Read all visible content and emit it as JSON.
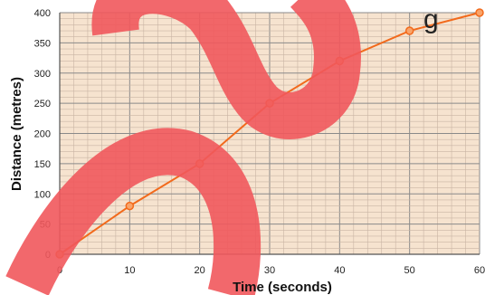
{
  "chart_data": {
    "type": "line",
    "title": "g",
    "xlabel": "Time (seconds)",
    "ylabel": "Distance (metres)",
    "x": [
      0,
      10,
      20,
      30,
      40,
      50,
      60
    ],
    "series": [
      {
        "values": [
          0,
          80,
          150,
          250,
          320,
          370,
          400
        ]
      }
    ],
    "xlim": [
      0,
      60
    ],
    "ylim": [
      0,
      400
    ],
    "x_ticks": [
      0,
      10,
      20,
      30,
      40,
      50,
      60
    ],
    "y_ticks": [
      0,
      50,
      100,
      150,
      200,
      250,
      300,
      350,
      400
    ],
    "x_tick_labels": [
      "0",
      "10",
      "20",
      "30",
      "40",
      "50",
      "60"
    ],
    "y_tick_labels": [
      "0",
      "50",
      "100",
      "150",
      "200",
      "250",
      "300",
      "350",
      "400"
    ],
    "grid": true,
    "colors": {
      "line": "#f26a1c",
      "marker_fill": "#f9a46a",
      "plot_background": "#f6e3cf",
      "grid_minor": "#c9b4a4",
      "grid_major": "#8a8a8a",
      "watermark": "#f1585c"
    }
  }
}
